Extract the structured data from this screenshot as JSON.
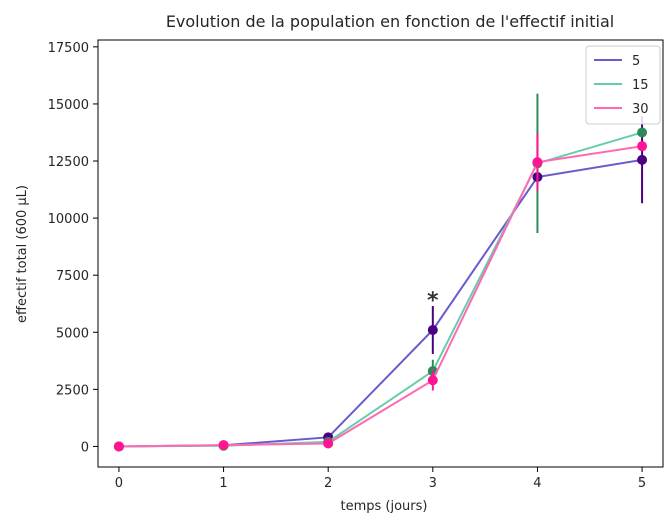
{
  "chart_data": {
    "type": "line",
    "title": "Evolution de la population en fonction de l'effectif initial",
    "xlabel": "temps (jours)",
    "ylabel": "effectif total (600 µL)",
    "x": [
      0,
      1,
      2,
      3,
      4,
      5
    ],
    "xlim": [
      -0.2,
      5.2
    ],
    "ylim": [
      -900,
      17800
    ],
    "xticks": [
      0,
      1,
      2,
      3,
      4,
      5
    ],
    "yticks": [
      0,
      2500,
      5000,
      7500,
      10000,
      12500,
      15000,
      17500
    ],
    "grid": false,
    "legend_position": "top-right",
    "series": [
      {
        "name": "5",
        "line_color": "#6a5acd",
        "marker_color": "#4b0082",
        "values": [
          0,
          50,
          400,
          5100,
          11800,
          12550
        ],
        "errors": [
          0,
          0,
          0,
          1050,
          0,
          1900
        ]
      },
      {
        "name": "15",
        "line_color": "#66cdaa",
        "marker_color": "#2e8b57",
        "values": [
          0,
          30,
          200,
          3300,
          12400,
          13750
        ],
        "errors": [
          0,
          0,
          0,
          500,
          3050,
          0
        ]
      },
      {
        "name": "30",
        "line_color": "#ff69b4",
        "marker_color": "#ff1493",
        "values": [
          0,
          60,
          130,
          2900,
          12450,
          13150
        ],
        "errors": [
          0,
          0,
          0,
          450,
          1250,
          0
        ]
      }
    ],
    "annotations": [
      {
        "text": "*",
        "x": 3,
        "y": 6700
      }
    ]
  }
}
